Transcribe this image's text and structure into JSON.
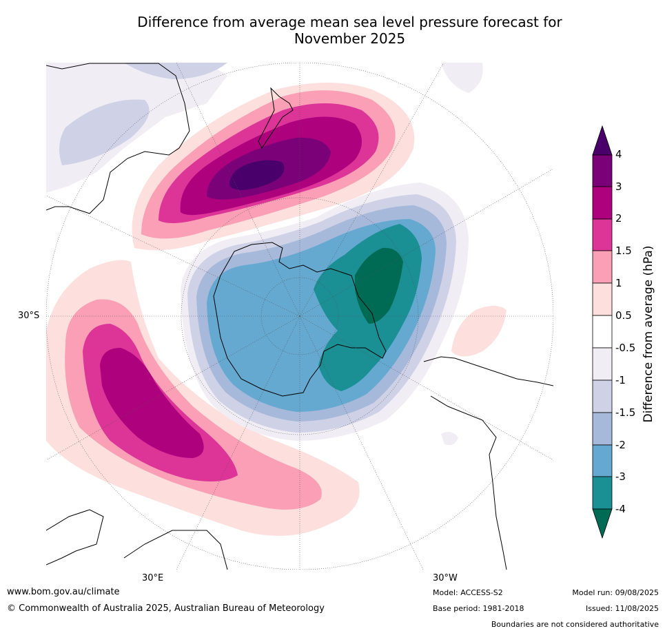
{
  "title_line1": "Difference from average mean sea level pressure forecast for",
  "title_line2": "November 2025",
  "graticule_labels": {
    "lat": "30°S",
    "lon_east": "30°E",
    "lon_west": "30°W"
  },
  "colorbar": {
    "title": "Difference from average (hPa)",
    "levels": [
      "-4",
      "-3",
      "-2",
      "-1.5",
      "-1",
      "-0.5",
      "0.5",
      "1",
      "1.5",
      "2",
      "3",
      "4"
    ],
    "colors": {
      "below_min": "#006b55",
      "n4_n3": "#1a8f94",
      "n3_n2": "#65a9d1",
      "n2_n15": "#a7b9da",
      "n15_n1": "#cfd2e6",
      "n1_n05": "#f1edf5",
      "n05_05": "#ffffff",
      "p05_1": "#fde0dd",
      "p1_15": "#fa9fb5",
      "p15_2": "#dd3497",
      "p2_3": "#ae017e",
      "p3_4": "#7a0177",
      "above_max": "#49006a"
    }
  },
  "footer": {
    "website": "www.bom.gov.au/climate",
    "copyright": "© Commonwealth of Australia 2025, Australian Bureau of Meteorology",
    "model": "Model: ACCESS-S2",
    "base_period": "Base period: 1981-2018",
    "model_run": "Model run: 09/08/2025",
    "issued": "Issued: 11/08/2025",
    "disclaimer": "Boundaries are not considered authoritative"
  }
}
